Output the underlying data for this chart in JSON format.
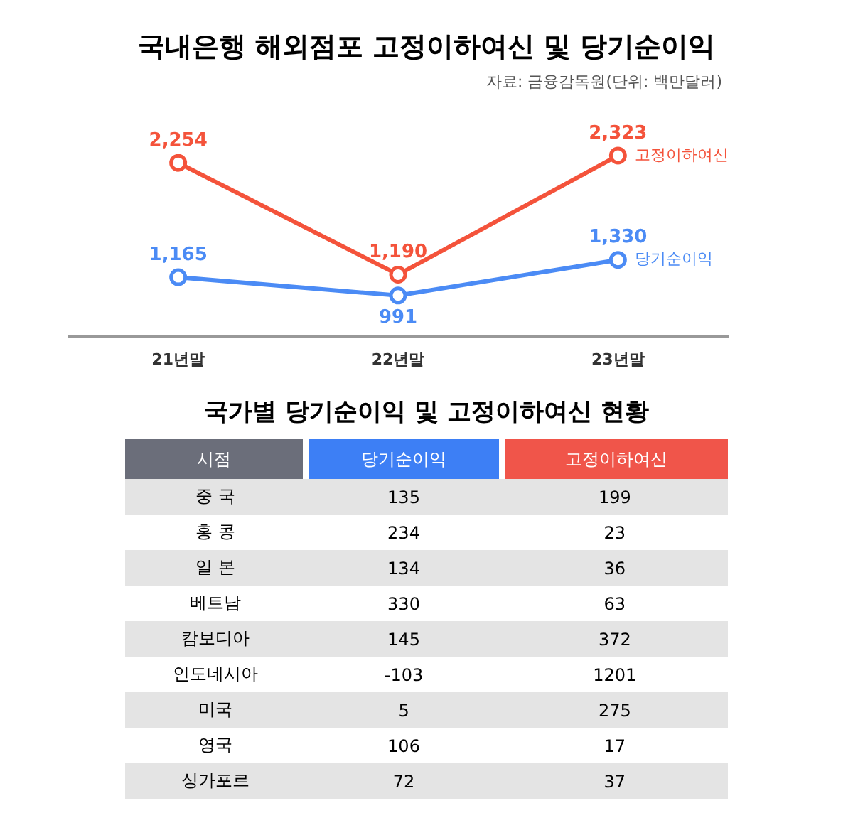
{
  "chart_data": [
    {
      "type": "line",
      "title": "국내은행 해외점포 고정이하여신 및 당기순이익",
      "annotations": [
        "자료: 금융감독원(단위: 백만달러)"
      ],
      "categories": [
        "21년말",
        "22년말",
        "23년말"
      ],
      "marker": "circle",
      "series": [
        {
          "name": "고정이하여신",
          "color": "#f4533b",
          "values": [
            2254,
            1190,
            2323
          ],
          "value_labels": [
            "2,254",
            "1,190",
            "2,323"
          ]
        },
        {
          "name": "당기순이익",
          "color": "#4b8bf5",
          "values": [
            1165,
            991,
            1330
          ],
          "value_labels": [
            "1,165",
            "991",
            "1,330"
          ]
        }
      ]
    },
    {
      "type": "other",
      "title": "국가별 당기순이익 및 고정이하여신 현황",
      "xlabel": "시점",
      "categories": [
        "중 국",
        "홍 콩",
        "일 본",
        "베트남",
        "캄보디아",
        "인도네시아",
        "미국",
        "영국",
        "싱가포르"
      ],
      "data_labels": true,
      "series": [
        {
          "name": "당기순이익",
          "colors": [
            "#e4e4e4",
            "#ffffff",
            "#e4e4e4",
            "#ffffff",
            "#e4e4e4",
            "#ffffff",
            "#e4e4e4",
            "#ffffff",
            "#e4e4e4"
          ],
          "values": [
            135,
            234,
            134,
            330,
            145,
            -103,
            5,
            106,
            72
          ]
        },
        {
          "name": "고정이하여신",
          "colors": [
            "#e4e4e4",
            "#ffffff",
            "#e4e4e4",
            "#ffffff",
            "#e4e4e4",
            "#ffffff",
            "#e4e4e4",
            "#ffffff",
            "#e4e4e4"
          ],
          "values": [
            199,
            23,
            36,
            63,
            372,
            1201,
            275,
            17,
            37
          ]
        }
      ]
    }
  ]
}
